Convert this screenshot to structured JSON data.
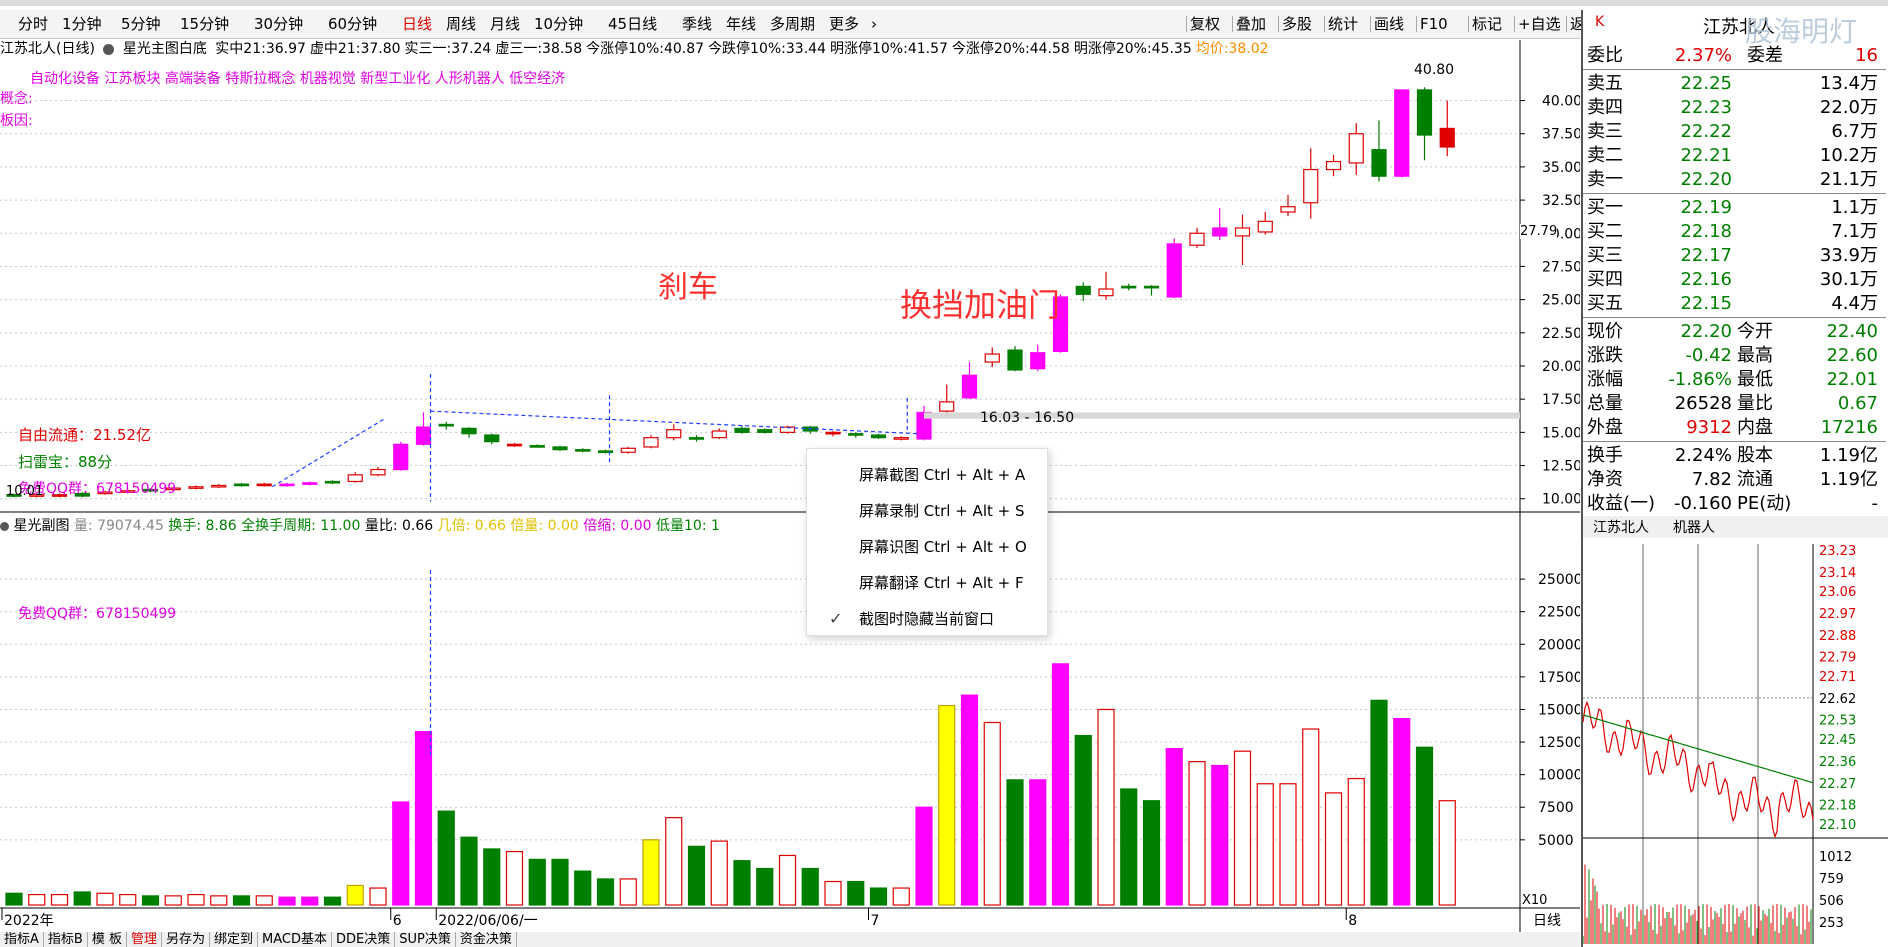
{
  "toolbar": {
    "periods": [
      "分时",
      "1分钟",
      "5分钟",
      "15分钟",
      "30分钟",
      "60分钟",
      "日线",
      "周线",
      "月线",
      "10分钟",
      "45日线",
      "季线",
      "年线",
      "多周期",
      "更多"
    ],
    "active_period": "日线",
    "right_tools": [
      "复权",
      "叠加",
      "多股",
      "统计",
      "画线",
      "F10",
      "标记",
      "+自选",
      "返回"
    ]
  },
  "info": {
    "title": "江苏北人(日线)",
    "indicator": "星光主图白底",
    "values": [
      {
        "label": "实中21:",
        "value": "36.97",
        "color": "#000000"
      },
      {
        "label": "虚中21:",
        "value": "37.80",
        "color": "#000000"
      },
      {
        "label": "实三一:",
        "value": "37.24",
        "color": "#000000"
      },
      {
        "label": "虚三一:",
        "value": "38.58",
        "color": "#000000"
      },
      {
        "label": "今涨停10%:",
        "value": "40.87",
        "color": "#000000"
      },
      {
        "label": "今跌停10%:",
        "value": "33.44",
        "color": "#000000"
      },
      {
        "label": "明涨停10%:",
        "value": "41.57",
        "color": "#000000"
      },
      {
        "label": "今涨停20%:",
        "value": "44.58",
        "color": "#000000"
      },
      {
        "label": "明涨停20%:",
        "value": "45.35",
        "color": "#000000"
      },
      {
        "label": "均价:",
        "value": "38.02",
        "color": "#ff8c00"
      }
    ]
  },
  "concepts": "自动化设备  江苏板块  高端装备 特斯拉概念 机器视觉 新型工业化 人形机器人 低空经济",
  "concept_label": "概念:",
  "limit_label": "板因:",
  "annotations": {
    "brake": "刹车",
    "shift": "换挡加油门",
    "range_label": "16.03 - 16.50",
    "high_label": "40.80",
    "low_label": "10.01",
    "float_cap": "自由流通：21.52亿",
    "scan_score": "扫雷宝：88分",
    "qq_group": "免费QQ群：678150499",
    "crosshair_price": "27.79"
  },
  "price_axis": [
    "40.00",
    "37.50",
    "35.00",
    "32.50",
    "30.00",
    "27.50",
    "25.00",
    "22.50",
    "20.00",
    "17.50",
    "15.00",
    "12.50",
    "10.00"
  ],
  "volume_axis": [
    "25000",
    "22500",
    "20000",
    "17500",
    "15000",
    "12500",
    "10000",
    "7500",
    "5000"
  ],
  "volume_axis_unit": "X10",
  "sub_header": {
    "title": "星光副图",
    "items": [
      {
        "label": "量:",
        "value": "79074.45",
        "color": "#888888"
      },
      {
        "label": "换手:",
        "value": "8.86",
        "color": "#008000"
      },
      {
        "label": "全换手周期:",
        "value": "11.00",
        "color": "#008000"
      },
      {
        "label": "量比:",
        "value": "0.66",
        "color": "#000000"
      },
      {
        "label": "几倍:",
        "value": "0.66",
        "color": "#e0c000"
      },
      {
        "label": "倍量:",
        "value": "0.00",
        "color": "#e0c000"
      },
      {
        "label": "倍缩:",
        "value": "0.00",
        "color": "#e000e0"
      },
      {
        "label": "低量10:",
        "value": "1",
        "color": "#008000"
      }
    ]
  },
  "x_axis": {
    "labels": [
      {
        "text": "2022年",
        "i": 0
      },
      {
        "text": "6",
        "i": 17
      },
      {
        "text": "2022/06/06/一",
        "i": 19
      },
      {
        "text": "7",
        "i": 38
      },
      {
        "text": "8",
        "i": 59
      }
    ],
    "right_label": "日线"
  },
  "chart_data": {
    "type": "candlestick",
    "price_ylim": [
      9.0,
      42.0
    ],
    "volume_ylim": [
      0,
      28000
    ],
    "volume_unit_multiplier": 10,
    "candles": [
      {
        "o": 10.3,
        "c": 10.2,
        "h": 10.4,
        "l": 10.1,
        "v": 900,
        "color": "green"
      },
      {
        "o": 10.2,
        "c": 10.3,
        "h": 10.4,
        "l": 10.1,
        "v": 800,
        "color": "red"
      },
      {
        "o": 10.3,
        "c": 10.2,
        "h": 10.4,
        "l": 10.1,
        "v": 800,
        "color": "red"
      },
      {
        "o": 10.2,
        "c": 10.4,
        "h": 10.5,
        "l": 10.1,
        "v": 1000,
        "color": "green"
      },
      {
        "o": 10.4,
        "c": 10.5,
        "h": 10.6,
        "l": 10.3,
        "v": 900,
        "color": "red"
      },
      {
        "o": 10.5,
        "c": 10.6,
        "h": 10.7,
        "l": 10.4,
        "v": 800,
        "color": "red"
      },
      {
        "o": 10.6,
        "c": 10.7,
        "h": 10.8,
        "l": 10.5,
        "v": 700,
        "color": "green"
      },
      {
        "o": 10.7,
        "c": 10.8,
        "h": 10.9,
        "l": 10.6,
        "v": 700,
        "color": "red"
      },
      {
        "o": 10.8,
        "c": 10.9,
        "h": 11.0,
        "l": 10.7,
        "v": 800,
        "color": "red"
      },
      {
        "o": 10.9,
        "c": 11.0,
        "h": 11.1,
        "l": 10.8,
        "v": 700,
        "color": "red"
      },
      {
        "o": 11.0,
        "c": 11.1,
        "h": 11.2,
        "l": 10.9,
        "v": 700,
        "color": "green"
      },
      {
        "o": 11.1,
        "c": 11.0,
        "h": 11.2,
        "l": 10.9,
        "v": 700,
        "color": "red"
      },
      {
        "o": 11.0,
        "c": 11.1,
        "h": 11.2,
        "l": 10.9,
        "v": 600,
        "color": "magenta"
      },
      {
        "o": 11.1,
        "c": 11.2,
        "h": 11.3,
        "l": 11.0,
        "v": 600,
        "color": "magenta"
      },
      {
        "o": 11.2,
        "c": 11.3,
        "h": 11.4,
        "l": 11.1,
        "v": 600,
        "color": "green"
      },
      {
        "o": 11.3,
        "c": 11.8,
        "h": 12.0,
        "l": 11.2,
        "v": 1500,
        "color": "yellow"
      },
      {
        "o": 11.8,
        "c": 12.2,
        "h": 12.4,
        "l": 11.7,
        "v": 1300,
        "color": "red"
      },
      {
        "o": 12.2,
        "c": 14.1,
        "h": 14.3,
        "l": 12.1,
        "v": 7900,
        "color": "magenta"
      },
      {
        "o": 14.1,
        "c": 15.4,
        "h": 16.5,
        "l": 14.0,
        "v": 13300,
        "color": "magenta"
      },
      {
        "o": 15.6,
        "c": 15.5,
        "h": 15.8,
        "l": 15.2,
        "v": 7200,
        "color": "green"
      },
      {
        "o": 15.3,
        "c": 14.9,
        "h": 15.4,
        "l": 14.6,
        "v": 5200,
        "color": "green"
      },
      {
        "o": 14.8,
        "c": 14.3,
        "h": 14.9,
        "l": 14.1,
        "v": 4300,
        "color": "green"
      },
      {
        "o": 14.1,
        "c": 14.0,
        "h": 14.2,
        "l": 13.9,
        "v": 4100,
        "color": "red"
      },
      {
        "o": 14.0,
        "c": 14.0,
        "h": 14.1,
        "l": 13.9,
        "v": 3500,
        "color": "green"
      },
      {
        "o": 13.9,
        "c": 13.7,
        "h": 14.0,
        "l": 13.6,
        "v": 3500,
        "color": "green"
      },
      {
        "o": 13.7,
        "c": 13.6,
        "h": 13.8,
        "l": 13.5,
        "v": 2600,
        "color": "green"
      },
      {
        "o": 13.6,
        "c": 13.5,
        "h": 13.7,
        "l": 13.4,
        "v": 2000,
        "color": "green"
      },
      {
        "o": 13.5,
        "c": 13.8,
        "h": 13.9,
        "l": 13.4,
        "v": 2000,
        "color": "red"
      },
      {
        "o": 13.9,
        "c": 14.6,
        "h": 14.8,
        "l": 13.8,
        "v": 5000,
        "color": "yellow"
      },
      {
        "o": 14.6,
        "c": 15.2,
        "h": 15.6,
        "l": 14.4,
        "v": 6700,
        "color": "red"
      },
      {
        "o": 14.6,
        "c": 14.5,
        "h": 14.8,
        "l": 14.3,
        "v": 4500,
        "color": "green"
      },
      {
        "o": 14.6,
        "c": 15.1,
        "h": 15.3,
        "l": 14.5,
        "v": 4900,
        "color": "red"
      },
      {
        "o": 15.0,
        "c": 15.3,
        "h": 15.5,
        "l": 14.9,
        "v": 3400,
        "color": "green"
      },
      {
        "o": 15.2,
        "c": 15.0,
        "h": 15.3,
        "l": 14.9,
        "v": 2800,
        "color": "green"
      },
      {
        "o": 15.0,
        "c": 15.4,
        "h": 15.5,
        "l": 14.9,
        "v": 3800,
        "color": "red"
      },
      {
        "o": 15.4,
        "c": 15.1,
        "h": 15.5,
        "l": 14.9,
        "v": 2800,
        "color": "green"
      },
      {
        "o": 15.0,
        "c": 14.9,
        "h": 15.1,
        "l": 14.7,
        "v": 1800,
        "color": "red"
      },
      {
        "o": 14.9,
        "c": 14.8,
        "h": 15.0,
        "l": 14.6,
        "v": 1800,
        "color": "green"
      },
      {
        "o": 14.8,
        "c": 14.6,
        "h": 14.9,
        "l": 14.5,
        "v": 1300,
        "color": "green"
      },
      {
        "o": 14.5,
        "c": 14.6,
        "h": 14.7,
        "l": 14.4,
        "v": 1300,
        "color": "red"
      },
      {
        "o": 14.5,
        "c": 16.5,
        "h": 17.0,
        "l": 14.4,
        "v": 7500,
        "color": "magenta"
      },
      {
        "o": 16.6,
        "c": 17.3,
        "h": 18.6,
        "l": 16.4,
        "v": 15300,
        "color": "yellow"
      },
      {
        "o": 17.6,
        "c": 19.3,
        "h": 20.3,
        "l": 17.5,
        "v": 16100,
        "color": "magenta"
      },
      {
        "o": 20.3,
        "c": 20.9,
        "h": 21.4,
        "l": 19.9,
        "v": 14000,
        "color": "red"
      },
      {
        "o": 21.2,
        "c": 19.7,
        "h": 21.5,
        "l": 19.6,
        "v": 9600,
        "color": "green"
      },
      {
        "o": 19.8,
        "c": 21.0,
        "h": 21.6,
        "l": 19.6,
        "v": 9600,
        "color": "magenta"
      },
      {
        "o": 21.1,
        "c": 25.2,
        "h": 25.4,
        "l": 21.0,
        "v": 18500,
        "color": "magenta"
      },
      {
        "o": 26.0,
        "c": 25.4,
        "h": 26.3,
        "l": 24.9,
        "v": 13000,
        "color": "green"
      },
      {
        "o": 25.3,
        "c": 25.8,
        "h": 27.1,
        "l": 25.0,
        "v": 15000,
        "color": "red"
      },
      {
        "o": 25.9,
        "c": 26.0,
        "h": 26.2,
        "l": 25.7,
        "v": 8900,
        "color": "green"
      },
      {
        "o": 25.9,
        "c": 26.0,
        "h": 26.1,
        "l": 25.3,
        "v": 8000,
        "color": "green"
      },
      {
        "o": 25.2,
        "c": 29.2,
        "h": 29.6,
        "l": 25.1,
        "v": 12000,
        "color": "magenta"
      },
      {
        "o": 29.1,
        "c": 30.0,
        "h": 30.4,
        "l": 28.9,
        "v": 11000,
        "color": "red"
      },
      {
        "o": 30.4,
        "c": 29.8,
        "h": 31.9,
        "l": 29.5,
        "v": 10700,
        "color": "magenta"
      },
      {
        "o": 29.8,
        "c": 30.4,
        "h": 31.4,
        "l": 27.6,
        "v": 11800,
        "color": "red"
      },
      {
        "o": 30.1,
        "c": 30.9,
        "h": 31.6,
        "l": 29.9,
        "v": 9300,
        "color": "red"
      },
      {
        "o": 31.6,
        "c": 32.0,
        "h": 32.9,
        "l": 31.3,
        "v": 9300,
        "color": "red"
      },
      {
        "o": 32.3,
        "c": 34.8,
        "h": 36.4,
        "l": 31.1,
        "v": 13500,
        "color": "red"
      },
      {
        "o": 34.8,
        "c": 35.4,
        "h": 35.9,
        "l": 34.3,
        "v": 8600,
        "color": "red"
      },
      {
        "o": 35.3,
        "c": 37.5,
        "h": 38.3,
        "l": 34.4,
        "v": 9700,
        "color": "red"
      },
      {
        "o": 36.3,
        "c": 34.3,
        "h": 38.5,
        "l": 33.9,
        "v": 15700,
        "color": "green"
      },
      {
        "o": 40.8,
        "c": 34.3,
        "h": 40.8,
        "l": 34.2,
        "v": 14300,
        "color": "magenta"
      },
      {
        "o": 40.8,
        "c": 37.4,
        "h": 41.0,
        "l": 35.5,
        "v": 12100,
        "color": "green"
      },
      {
        "o": 37.9,
        "c": 36.5,
        "h": 40.0,
        "l": 35.8,
        "v": 8000,
        "color": "red"
      }
    ]
  },
  "context_menu": [
    {
      "label": "屏幕截图 Ctrl + Alt + A",
      "checked": false
    },
    {
      "label": "屏幕录制 Ctrl + Alt + S",
      "checked": false
    },
    {
      "label": "屏幕识图 Ctrl + Alt + O",
      "checked": false
    },
    {
      "label": "屏幕翻译 Ctrl + Alt + F",
      "checked": false
    },
    {
      "label": "截图时隐藏当前窗口",
      "checked": true
    }
  ],
  "right_panel": {
    "header_name": "江苏北人",
    "watermark": "股海明灯",
    "weibi": {
      "label": "委比",
      "value": "2.37%",
      "diff_label": "委差",
      "diff": "16"
    },
    "asks": [
      {
        "label": "卖五",
        "price": "22.25",
        "vol": "13.4万"
      },
      {
        "label": "卖四",
        "price": "22.23",
        "vol": "22.0万"
      },
      {
        "label": "卖三",
        "price": "22.22",
        "vol": "6.7万"
      },
      {
        "label": "卖二",
        "price": "22.21",
        "vol": "10.2万"
      },
      {
        "label": "卖一",
        "price": "22.20",
        "vol": "21.1万"
      }
    ],
    "bids": [
      {
        "label": "买一",
        "price": "22.19",
        "vol": "1.1万"
      },
      {
        "label": "买二",
        "price": "22.18",
        "vol": "7.1万"
      },
      {
        "label": "买三",
        "price": "22.17",
        "vol": "33.9万"
      },
      {
        "label": "买四",
        "price": "22.16",
        "vol": "30.1万"
      },
      {
        "label": "买五",
        "price": "22.15",
        "vol": "4.4万"
      }
    ],
    "stats": [
      {
        "l1": "现价",
        "v1": "22.20",
        "c1": "#008000",
        "l2": "今开",
        "v2": "22.40",
        "c2": "#008000"
      },
      {
        "l1": "涨跌",
        "v1": "-0.42",
        "c1": "#008000",
        "l2": "最高",
        "v2": "22.60",
        "c2": "#008000"
      },
      {
        "l1": "涨幅",
        "v1": "-1.86%",
        "c1": "#008000",
        "l2": "最低",
        "v2": "22.01",
        "c2": "#008000"
      },
      {
        "l1": "总量",
        "v1": "26528",
        "c1": "#000000",
        "l2": "量比",
        "v2": "0.67",
        "c2": "#008000"
      },
      {
        "l1": "外盘",
        "v1": "9312",
        "c1": "#e00000",
        "l2": "内盘",
        "v2": "17216",
        "c2": "#008000"
      }
    ],
    "fund": [
      {
        "l1": "换手",
        "v1": "2.24%",
        "l2": "股本",
        "v2": "1.19亿"
      },
      {
        "l1": "净资",
        "v1": "7.82",
        "l2": "流通",
        "v2": "1.19亿"
      },
      {
        "l1": "收益(一)",
        "v1": "-0.160",
        "l2": "PE(动)",
        "v2": "-"
      }
    ],
    "mini_tabs": [
      "江苏北人",
      "机器人"
    ],
    "mini_price_axis": [
      "23.23",
      "23.14",
      "23.06",
      "22.97",
      "22.88",
      "22.79",
      "22.71",
      "22.62",
      "22.53",
      "22.45",
      "22.36",
      "22.27",
      "22.18",
      "22.10"
    ],
    "mini_vol_axis": [
      "1012",
      "759",
      "506",
      "253"
    ]
  },
  "bottom_tabs": [
    "指标A",
    "指标B",
    "模 板",
    "管理",
    "另存为",
    "绑定到",
    "MACD基本",
    "DDE决策",
    "SUP决策",
    "资金决策"
  ],
  "colors": {
    "up": "#e00000",
    "down": "#007f00",
    "magenta": "#ff00ff",
    "yellow": "#ffff00",
    "grid": "#c8c8c8",
    "blue_dash": "#2040ff"
  }
}
